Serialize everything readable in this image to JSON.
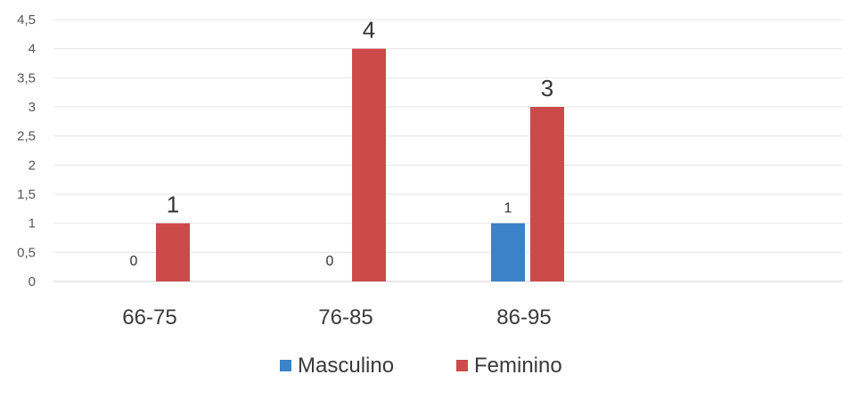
{
  "chart_data": {
    "type": "bar",
    "categories": [
      "66-75",
      "76-85",
      "86-95"
    ],
    "series": [
      {
        "name": "Masculino",
        "color": "#3b82c8",
        "values": [
          0,
          0,
          1
        ]
      },
      {
        "name": "Feminino",
        "color": "#cc4a4a",
        "values": [
          1,
          4,
          3
        ]
      }
    ],
    "y_ticks": [
      "0",
      "0,5",
      "1",
      "1,5",
      "2",
      "2,5",
      "3",
      "3,5",
      "4",
      "4,5"
    ],
    "ylim": [
      0,
      4.5
    ],
    "grid": true,
    "legend_position": "bottom",
    "title": "",
    "xlabel": "",
    "ylabel": ""
  }
}
